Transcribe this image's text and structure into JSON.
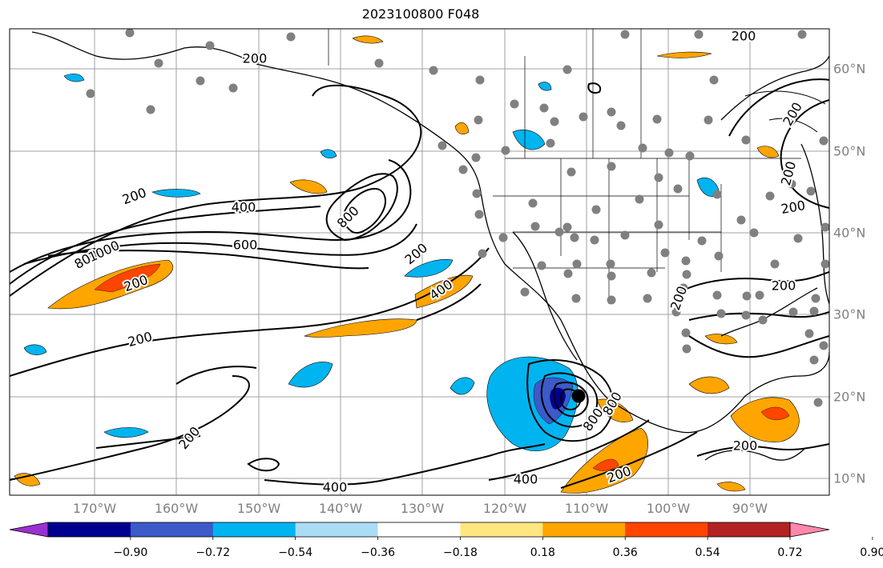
{
  "title": "2023100800 F048",
  "lon_labels": [
    "170°W",
    "160°W",
    "150°W",
    "140°W",
    "130°W",
    "120°W",
    "110°W",
    "100°W",
    "90°W"
  ],
  "lat_labels": [
    "60°N",
    "50°N",
    "40°N",
    "30°N",
    "20°N",
    "10°N"
  ],
  "contour_labels": [
    "200",
    "200",
    "400",
    "600",
    "800",
    "800",
    "1000",
    "200",
    "200",
    "400",
    "200",
    "200",
    "400",
    "800",
    "800",
    "200",
    "400",
    "200",
    "200",
    "200",
    "200",
    "200",
    "200",
    "200"
  ],
  "colorbar": {
    "tick_labels": [
      "−0.90",
      "−0.72",
      "−0.54",
      "−0.36",
      "−0.18",
      "0.18",
      "0.36",
      "0.54",
      "0.72",
      "0.90"
    ],
    "colors": [
      "#9b30d0",
      "#000090",
      "#3c5ac8",
      "#00b4f0",
      "#aadcf5",
      "#ffffff",
      "#ffe680",
      "#ffa500",
      "#ff4500",
      "#b22222",
      "#ff88aa"
    ]
  },
  "map_colors": {
    "positive": "#ffa500",
    "positive_strong": "#ff4500",
    "negative": "#00b4f0",
    "negative_strong": "#3c5ac8",
    "station": "#808080",
    "grid": "#a0a0a0"
  }
}
